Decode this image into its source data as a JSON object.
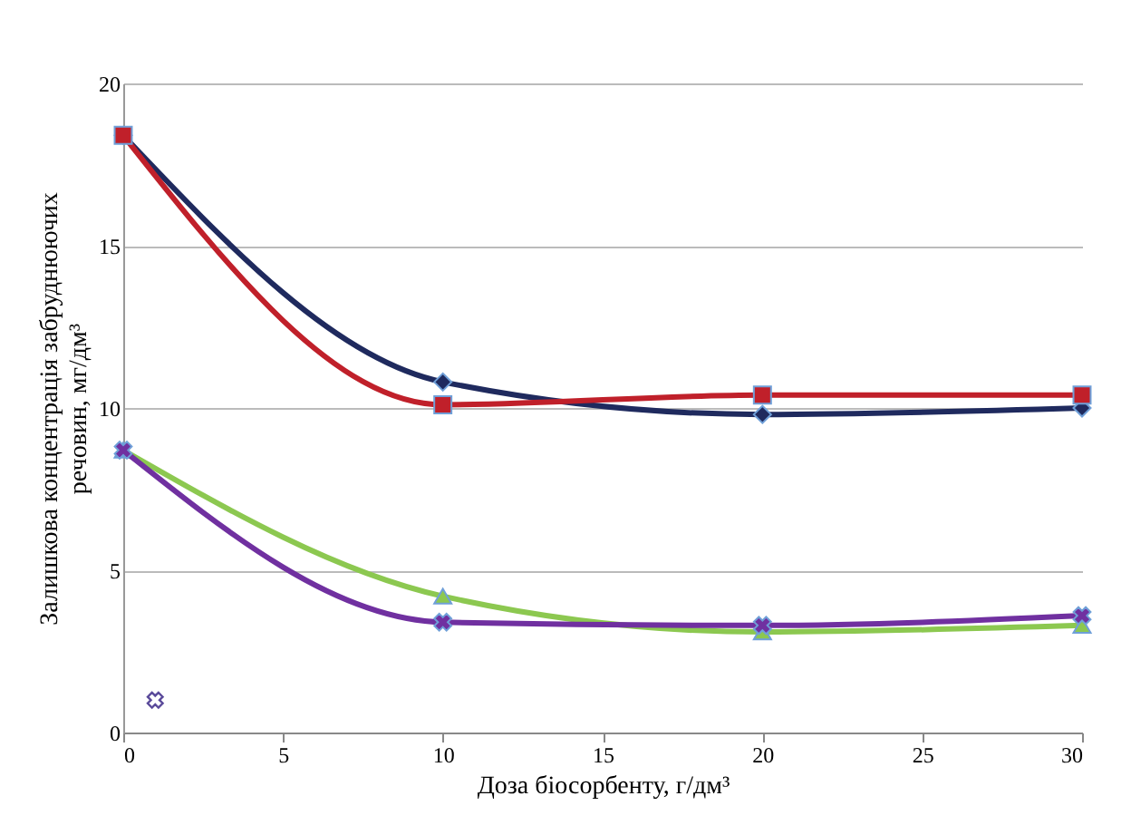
{
  "chart_data": {
    "type": "line",
    "xlabel": "Доза біосорбенту, г/дм³",
    "ylabel": "Залишкова концентрація забруднюючих\nречовин, мг/дм³",
    "x": [
      0,
      10,
      20,
      30
    ],
    "xlim": [
      0,
      30
    ],
    "xticks": [
      0,
      5,
      10,
      15,
      20,
      25,
      30
    ],
    "ylim": [
      0,
      20
    ],
    "yticks": [
      0,
      5,
      10,
      15,
      20
    ],
    "grid": "y",
    "series": [
      {
        "color": "#1f2a5e",
        "marker": "diamond",
        "values": [
          18.4,
          10.8,
          9.8,
          10.0
        ]
      },
      {
        "color": "#c0202a",
        "marker": "square",
        "values": [
          18.4,
          10.1,
          10.4,
          10.4
        ]
      },
      {
        "color": "#8cc850",
        "marker": "triangle",
        "values": [
          8.7,
          4.2,
          3.1,
          3.3
        ]
      },
      {
        "color": "#7030a0",
        "marker": "cross",
        "values": [
          8.7,
          3.4,
          3.3,
          3.6
        ]
      },
      {
        "type": "scatter",
        "color": "#5a4a9a",
        "marker": "cross",
        "x": [
          1
        ],
        "values": [
          1.0
        ]
      }
    ]
  }
}
